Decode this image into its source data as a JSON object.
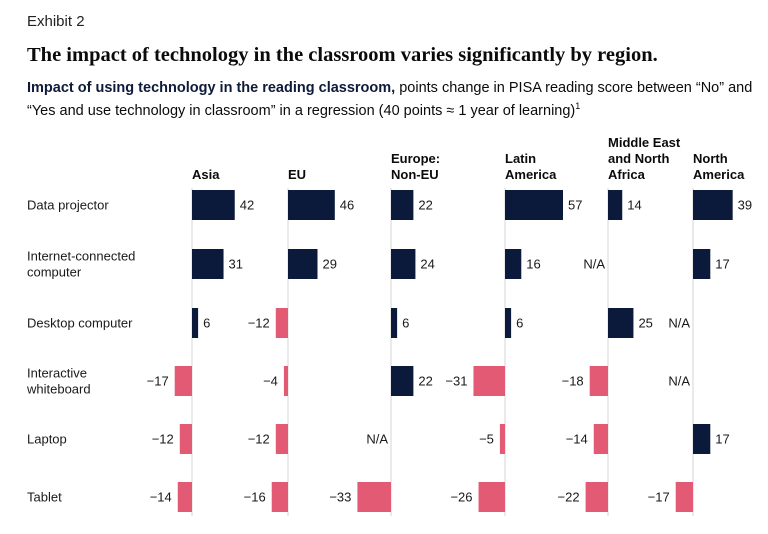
{
  "exhibit": "Exhibit 2",
  "title": "The impact of technology in the classroom varies significantly by region.",
  "subtitle_bold": "Impact of using technology in the reading classroom,",
  "subtitle_rest": "points change in PISA reading score between “No” and “Yes and use technology in classroom” in a regression (40 points ≈ 1 year of learning)",
  "footnote_mark": "1",
  "colors": {
    "positive": "#0b1a3b",
    "negative": "#e25a73",
    "axis": "#d4d4d4"
  },
  "chart_data": {
    "type": "bar",
    "orientation": "horizontal",
    "title": "Impact of using technology in the reading classroom",
    "categories": [
      "Data projector",
      "Internet-connected computer",
      "Desktop computer",
      "Interactive whiteboard",
      "Laptop",
      "Tablet"
    ],
    "category_lines": [
      [
        "Data projector"
      ],
      [
        "Internet-connected",
        "computer"
      ],
      [
        "Desktop computer"
      ],
      [
        "Interactive",
        "whiteboard"
      ],
      [
        "Laptop"
      ],
      [
        "Tablet"
      ]
    ],
    "na_label": "N/A",
    "series": [
      {
        "name": "Asia",
        "header_lines": [
          "Asia"
        ],
        "values": [
          42,
          31,
          6,
          -17,
          -12,
          -14
        ]
      },
      {
        "name": "EU",
        "header_lines": [
          "EU"
        ],
        "values": [
          46,
          29,
          -12,
          -4,
          -12,
          -16
        ]
      },
      {
        "name": "Europe: Non-EU",
        "header_lines": [
          "Europe:",
          "Non-EU"
        ],
        "values": [
          22,
          24,
          6,
          22,
          null,
          -33
        ]
      },
      {
        "name": "Latin America",
        "header_lines": [
          "Latin",
          "America"
        ],
        "values": [
          57,
          16,
          6,
          -31,
          -5,
          -26
        ]
      },
      {
        "name": "Middle East and North Africa",
        "header_lines": [
          "Middle East",
          "and North",
          "Africa"
        ],
        "values": [
          14,
          null,
          25,
          -18,
          -14,
          -22
        ]
      },
      {
        "name": "North America",
        "header_lines": [
          "North",
          "America"
        ],
        "values": [
          39,
          17,
          null,
          null,
          17,
          -17
        ]
      }
    ]
  }
}
